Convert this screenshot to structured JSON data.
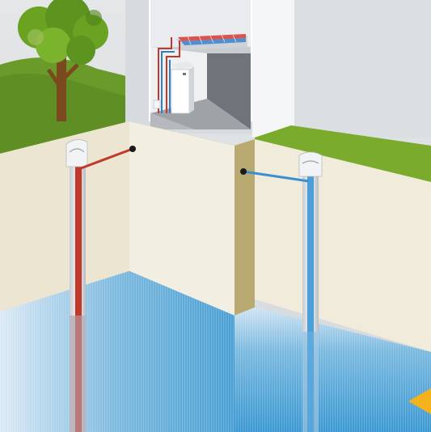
{
  "scene": {
    "kind": "geothermal-water-to-water-heat-pump-cutaway",
    "elements": [
      "tree",
      "house",
      "heat-pump-unit",
      "floor-heating",
      "supply-well",
      "return-well",
      "groundwater",
      "flow-arrow"
    ]
  },
  "colors": {
    "sky": "#dfe2e5",
    "grass": "#7aab2c",
    "grass_dark": "#5f8d22",
    "soil": "#f2ede0",
    "soil_shadow": "#e5dcc4",
    "foundation": "#b8a870",
    "groundwater_top": "#d6e6f4",
    "groundwater_mid": "#74b6de",
    "groundwater_deep": "#3d9ad3",
    "supply_pipe": "#c0392b",
    "return_pipe": "#4a9fd8",
    "wall": "#ffffff",
    "interior_floor": "#9aa0a6",
    "interior_wall_dark": "#7d8388",
    "arrow": "#f5b21b"
  },
  "icons": {
    "tree": "tree-icon",
    "arrow": "flow-direction-arrow-icon"
  }
}
